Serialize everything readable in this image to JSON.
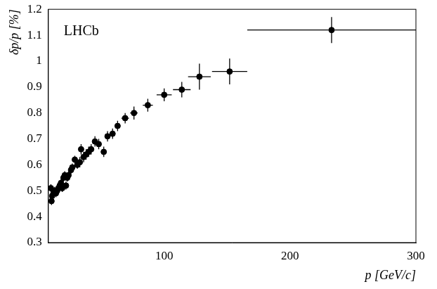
{
  "chart_data": {
    "type": "scatter",
    "annotation": "LHCb",
    "x_label": "p [GeV/c]",
    "y_label": "δp/p [%]",
    "x": [
      10,
      10.5,
      11,
      12,
      13,
      14,
      15,
      16,
      17,
      18,
      19,
      20,
      21,
      22,
      23,
      24,
      26,
      27,
      29,
      31,
      33,
      34,
      36,
      38,
      40,
      42,
      45,
      48,
      52,
      55,
      59,
      63,
      69,
      76,
      87,
      100,
      114,
      128,
      152,
      233
    ],
    "values": [
      0.51,
      0.46,
      0.48,
      0.49,
      0.5,
      0.49,
      0.5,
      0.51,
      0.52,
      0.53,
      0.51,
      0.55,
      0.56,
      0.52,
      0.55,
      0.56,
      0.58,
      0.59,
      0.62,
      0.6,
      0.61,
      0.66,
      0.63,
      0.64,
      0.65,
      0.66,
      0.69,
      0.68,
      0.65,
      0.71,
      0.72,
      0.75,
      0.78,
      0.8,
      0.83,
      0.87,
      0.89,
      0.94,
      0.96,
      1.12
    ],
    "yerr": [
      0.015,
      0.015,
      0.015,
      0.015,
      0.015,
      0.015,
      0.015,
      0.015,
      0.015,
      0.015,
      0.015,
      0.015,
      0.015,
      0.015,
      0.015,
      0.015,
      0.015,
      0.015,
      0.015,
      0.015,
      0.02,
      0.02,
      0.02,
      0.02,
      0.02,
      0.02,
      0.02,
      0.02,
      0.02,
      0.02,
      0.02,
      0.02,
      0.02,
      0.025,
      0.025,
      0.025,
      0.03,
      0.05,
      0.05,
      0.05
    ],
    "xerr": [
      0,
      0,
      0,
      0,
      0,
      0,
      0,
      0,
      0,
      0,
      0,
      0,
      0,
      0,
      0,
      0,
      0,
      0,
      0,
      0,
      0,
      0,
      0,
      0,
      0,
      0,
      0,
      0,
      0,
      0,
      2,
      2,
      3,
      3,
      4,
      6,
      7,
      9,
      14,
      67
    ],
    "xlim": [
      8,
      300
    ],
    "xticks": [
      100,
      200,
      300
    ],
    "ylim": [
      0.3,
      1.2
    ],
    "yticks": [
      0.3,
      0.4,
      0.5,
      0.6,
      0.7,
      0.8,
      0.9,
      1,
      1.1,
      1.2
    ],
    "color": "#000000",
    "marker": "circle",
    "grid": false
  }
}
